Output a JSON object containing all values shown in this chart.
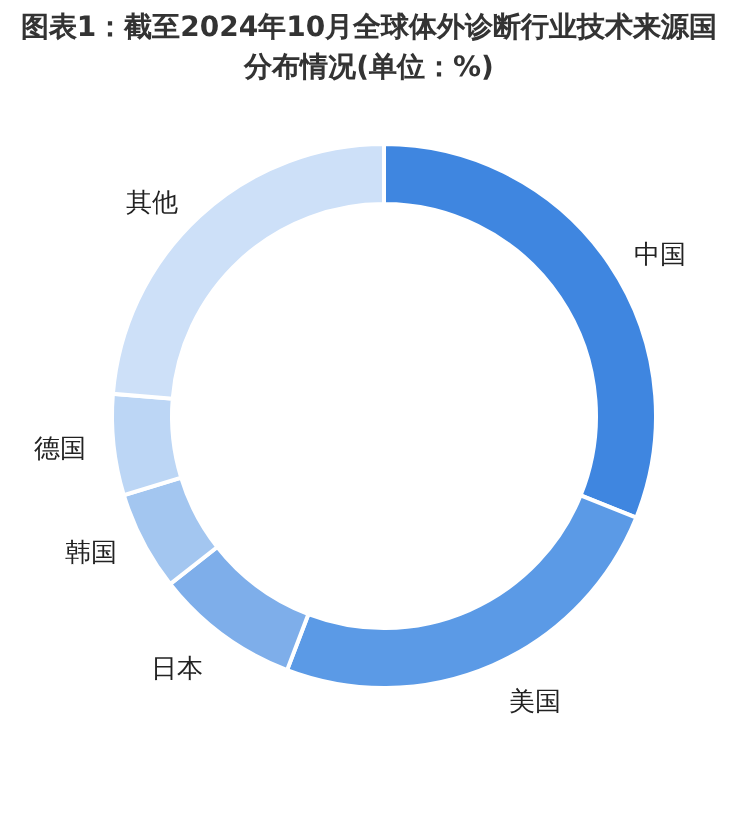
{
  "chart_data": {
    "type": "donut",
    "title": "图表1：截至2024年10月全球体外诊断行业技术来源国分布情况(单位：%)",
    "categories": [
      "中国",
      "美国",
      "日本",
      "韩国",
      "德国",
      "其他"
    ],
    "values": [
      31.1,
      24.7,
      8.6,
      5.9,
      6.0,
      23.7
    ],
    "colors": [
      "#3f86e0",
      "#5b9ae6",
      "#7eaeea",
      "#a3c6f0",
      "#bcd6f5",
      "#cde0f8"
    ]
  }
}
